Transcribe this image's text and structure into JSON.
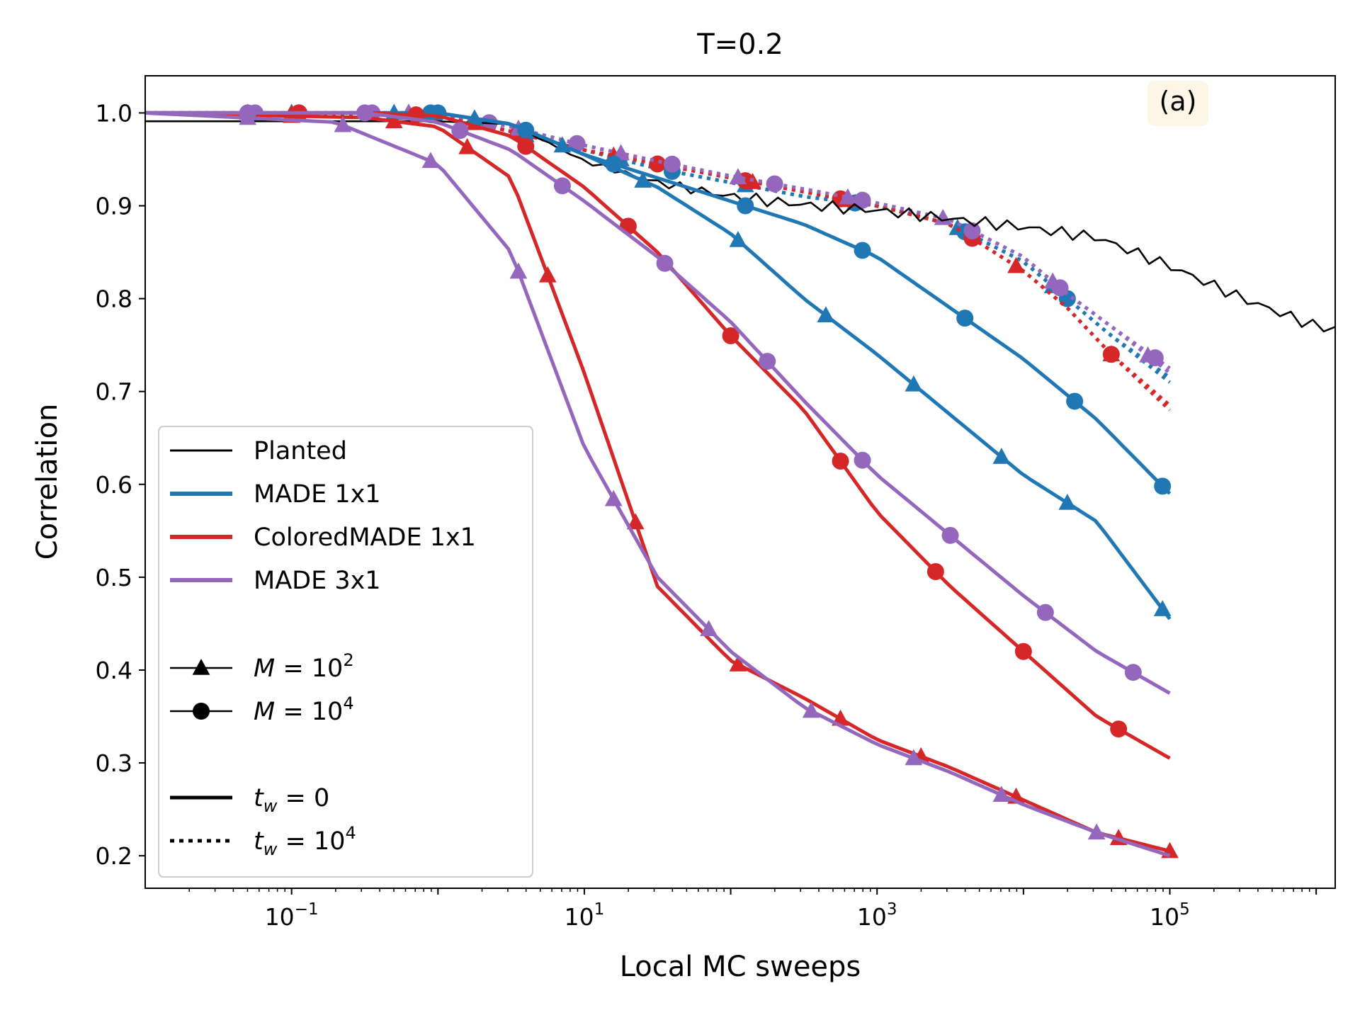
{
  "chart_data": {
    "type": "line",
    "title": "T=0.2",
    "panel_label": "(a)",
    "xlabel": "Local MC sweeps",
    "ylabel": "Correlation",
    "xscale": "log",
    "xlim_log10": [
      -2.0,
      6.13
    ],
    "ylim": [
      0.165,
      1.04
    ],
    "yticks": [
      {
        "value": 1.0,
        "label": "1.0"
      },
      {
        "value": 0.9,
        "label": "0.9"
      },
      {
        "value": 0.8,
        "label": "0.8"
      },
      {
        "value": 0.7,
        "label": "0.7"
      },
      {
        "value": 0.6,
        "label": "0.6"
      },
      {
        "value": 0.5,
        "label": "0.5"
      },
      {
        "value": 0.4,
        "label": "0.4"
      },
      {
        "value": 0.3,
        "label": "0.3"
      },
      {
        "value": 0.2,
        "label": "0.2"
      }
    ],
    "xticks": [
      {
        "exp": -1,
        "base": "10",
        "power": "−1"
      },
      {
        "exp": 1,
        "base": "10",
        "power": "1"
      },
      {
        "exp": 3,
        "base": "10",
        "power": "3"
      },
      {
        "exp": 5,
        "base": "10",
        "power": "5"
      }
    ],
    "colors": {
      "planted": "#000000",
      "made1x1": "#1f77b4",
      "colored": "#d62728",
      "made3x1": "#9467bd"
    },
    "legend": {
      "entries": [
        {
          "label": "Planted",
          "color": "#000000",
          "style": "solid-thin"
        },
        {
          "label": "MADE 1x1",
          "color": "#1f77b4",
          "style": "solid"
        },
        {
          "label": "ColoredMADE 1x1",
          "color": "#d62728",
          "style": "solid"
        },
        {
          "label": "MADE 3x1",
          "color": "#9467bd",
          "style": "solid"
        }
      ],
      "m_entries": [
        {
          "prefix": "M",
          "eq": " = 10",
          "power": "2",
          "marker": "triangle"
        },
        {
          "prefix": "M",
          "eq": " = 10",
          "power": "4",
          "marker": "circle"
        }
      ],
      "tw_entries": [
        {
          "prefix": "t",
          "sub": "w",
          "eq": " = 0",
          "power": "",
          "style": "solid"
        },
        {
          "prefix": "t",
          "sub": "w",
          "eq": " = 10",
          "power": "4",
          "style": "dotted"
        }
      ]
    },
    "series": [
      {
        "name": "Planted",
        "color": "#000000",
        "dash": "solid",
        "marker": "none",
        "width": 2.6,
        "jitter": 0.004,
        "points": [
          [
            -2.0,
            0.991
          ],
          [
            0.0,
            0.991
          ],
          [
            0.5,
            0.988
          ],
          [
            1.0,
            0.948
          ],
          [
            1.5,
            0.925
          ],
          [
            2.0,
            0.91
          ],
          [
            2.5,
            0.901
          ],
          [
            3.0,
            0.895
          ],
          [
            3.5,
            0.886
          ],
          [
            4.0,
            0.877
          ],
          [
            4.5,
            0.866
          ],
          [
            5.0,
            0.835
          ],
          [
            5.5,
            0.8
          ],
          [
            6.0,
            0.77
          ],
          [
            6.2,
            0.766
          ]
        ]
      },
      {
        "name": "MADE 1x1",
        "color": "#1f77b4",
        "dash": "solid",
        "marker": "triangle",
        "points": [
          [
            -2.0,
            1.0
          ],
          [
            0.0,
            1.0
          ],
          [
            0.5,
            0.988
          ],
          [
            1.0,
            0.955
          ],
          [
            1.5,
            0.92
          ],
          [
            2.0,
            0.87
          ],
          [
            2.5,
            0.8
          ],
          [
            3.0,
            0.74
          ],
          [
            3.5,
            0.675
          ],
          [
            4.0,
            0.61
          ],
          [
            4.5,
            0.56
          ],
          [
            5.0,
            0.455
          ]
        ],
        "marks": [
          -0.3,
          0.25,
          0.85,
          1.4,
          2.05,
          2.65,
          3.25,
          3.85,
          4.3,
          4.95
        ]
      },
      {
        "name": "MADE 1x1",
        "color": "#1f77b4",
        "dash": "solid",
        "marker": "circle",
        "points": [
          [
            -2.0,
            1.0
          ],
          [
            0.0,
            1.0
          ],
          [
            0.5,
            0.988
          ],
          [
            1.0,
            0.955
          ],
          [
            1.5,
            0.93
          ],
          [
            2.0,
            0.905
          ],
          [
            2.5,
            0.88
          ],
          [
            3.0,
            0.845
          ],
          [
            3.5,
            0.79
          ],
          [
            4.0,
            0.735
          ],
          [
            4.5,
            0.67
          ],
          [
            5.0,
            0.59
          ]
        ],
        "marks": [
          -0.95,
          -0.05,
          0.6,
          1.2,
          2.1,
          2.9,
          3.6,
          4.35,
          4.95
        ]
      },
      {
        "name": "ColoredMADE 1x1",
        "color": "#d62728",
        "dash": "solid",
        "marker": "triangle",
        "points": [
          [
            -2.0,
            1.0
          ],
          [
            -0.5,
            0.995
          ],
          [
            0.0,
            0.985
          ],
          [
            0.5,
            0.93
          ],
          [
            1.0,
            0.72
          ],
          [
            1.5,
            0.49
          ],
          [
            2.0,
            0.41
          ],
          [
            2.5,
            0.37
          ],
          [
            3.0,
            0.325
          ],
          [
            3.5,
            0.295
          ],
          [
            4.0,
            0.26
          ],
          [
            4.5,
            0.225
          ],
          [
            5.0,
            0.205
          ]
        ],
        "marks": [
          -1.0,
          -0.3,
          0.2,
          0.75,
          1.35,
          2.05,
          2.75,
          3.3,
          3.95,
          4.65,
          5.0
        ]
      },
      {
        "name": "ColoredMADE 1x1",
        "color": "#d62728",
        "dash": "solid",
        "marker": "circle",
        "points": [
          [
            -2.0,
            1.0
          ],
          [
            -0.5,
            1.0
          ],
          [
            0.0,
            0.997
          ],
          [
            0.5,
            0.975
          ],
          [
            1.0,
            0.92
          ],
          [
            1.5,
            0.85
          ],
          [
            2.0,
            0.76
          ],
          [
            2.5,
            0.68
          ],
          [
            3.0,
            0.57
          ],
          [
            3.5,
            0.49
          ],
          [
            4.0,
            0.42
          ],
          [
            4.5,
            0.35
          ],
          [
            5.0,
            0.305
          ]
        ],
        "marks": [
          -0.95,
          -0.15,
          0.6,
          1.3,
          2.0,
          2.75,
          3.4,
          4.0,
          4.65
        ]
      },
      {
        "name": "MADE 3x1",
        "color": "#9467bd",
        "dash": "solid",
        "marker": "triangle",
        "points": [
          [
            -2.0,
            1.0
          ],
          [
            -0.7,
            0.99
          ],
          [
            0.0,
            0.945
          ],
          [
            0.5,
            0.85
          ],
          [
            1.0,
            0.64
          ],
          [
            1.5,
            0.5
          ],
          [
            2.0,
            0.42
          ],
          [
            2.5,
            0.36
          ],
          [
            3.0,
            0.32
          ],
          [
            3.5,
            0.29
          ],
          [
            4.0,
            0.255
          ],
          [
            4.5,
            0.225
          ],
          [
            5.0,
            0.2
          ]
        ],
        "marks": [
          -1.3,
          -0.65,
          -0.05,
          0.55,
          1.2,
          1.85,
          2.55,
          3.25,
          3.85,
          4.5
        ]
      },
      {
        "name": "MADE 3x1",
        "color": "#9467bd",
        "dash": "solid",
        "marker": "circle",
        "points": [
          [
            -2.0,
            1.0
          ],
          [
            -0.5,
            1.0
          ],
          [
            0.0,
            0.99
          ],
          [
            0.5,
            0.96
          ],
          [
            1.0,
            0.905
          ],
          [
            1.5,
            0.845
          ],
          [
            2.0,
            0.775
          ],
          [
            2.5,
            0.69
          ],
          [
            3.0,
            0.61
          ],
          [
            3.5,
            0.545
          ],
          [
            4.0,
            0.48
          ],
          [
            4.5,
            0.42
          ],
          [
            5.0,
            0.375
          ]
        ],
        "marks": [
          -1.3,
          -0.5,
          0.15,
          0.85,
          1.55,
          2.25,
          2.9,
          3.5,
          4.15,
          4.75
        ]
      },
      {
        "name": "MADE 1x1 (t_w=10^4)",
        "color": "#1f77b4",
        "dash": "dotted",
        "marker": "triangle",
        "points": [
          [
            -2.0,
            1.0
          ],
          [
            0.0,
            1.0
          ],
          [
            0.5,
            0.98
          ],
          [
            1.0,
            0.96
          ],
          [
            1.5,
            0.94
          ],
          [
            2.0,
            0.925
          ],
          [
            2.5,
            0.91
          ],
          [
            3.0,
            0.9
          ],
          [
            3.5,
            0.88
          ],
          [
            4.0,
            0.84
          ],
          [
            4.3,
            0.8
          ],
          [
            4.6,
            0.76
          ],
          [
            5.0,
            0.71
          ]
        ],
        "marks": [
          -1.0,
          -0.2,
          0.6,
          1.25,
          2.1,
          2.85,
          3.55,
          4.2
        ]
      },
      {
        "name": "MADE 1x1 (t_w=10^4)",
        "color": "#1f77b4",
        "dash": "dotted",
        "marker": "circle",
        "points": [
          [
            -2.0,
            1.0
          ],
          [
            0.0,
            1.0
          ],
          [
            0.5,
            0.98
          ],
          [
            1.0,
            0.96
          ],
          [
            1.5,
            0.94
          ],
          [
            2.0,
            0.925
          ],
          [
            2.5,
            0.91
          ],
          [
            3.0,
            0.9
          ],
          [
            3.5,
            0.88
          ],
          [
            4.0,
            0.84
          ],
          [
            4.3,
            0.8
          ],
          [
            4.6,
            0.76
          ],
          [
            5.0,
            0.715
          ]
        ],
        "marks": [
          -0.95,
          0.0,
          0.6,
          1.6,
          2.85,
          3.6,
          4.3
        ]
      },
      {
        "name": "ColoredMADE 1x1 (t_w=10^4)",
        "color": "#d62728",
        "dash": "dotted",
        "marker": "triangle",
        "points": [
          [
            -2.0,
            1.0
          ],
          [
            0.0,
            0.998
          ],
          [
            0.5,
            0.98
          ],
          [
            1.0,
            0.96
          ],
          [
            1.5,
            0.945
          ],
          [
            2.0,
            0.93
          ],
          [
            2.5,
            0.915
          ],
          [
            3.0,
            0.9
          ],
          [
            3.5,
            0.88
          ],
          [
            4.0,
            0.83
          ],
          [
            4.3,
            0.79
          ],
          [
            4.6,
            0.74
          ],
          [
            5.0,
            0.68
          ]
        ],
        "marks": [
          -1.0,
          0.25,
          1.2,
          2.15,
          2.8,
          3.95,
          4.6
        ]
      },
      {
        "name": "ColoredMADE 1x1 (t_w=10^4)",
        "color": "#d62728",
        "dash": "dotted",
        "marker": "circle",
        "points": [
          [
            -2.0,
            1.0
          ],
          [
            0.0,
            0.998
          ],
          [
            0.5,
            0.98
          ],
          [
            1.0,
            0.96
          ],
          [
            1.5,
            0.945
          ],
          [
            2.0,
            0.93
          ],
          [
            2.5,
            0.915
          ],
          [
            3.0,
            0.9
          ],
          [
            3.5,
            0.88
          ],
          [
            4.0,
            0.83
          ],
          [
            4.3,
            0.79
          ],
          [
            4.6,
            0.74
          ],
          [
            5.0,
            0.685
          ]
        ],
        "marks": [
          -0.95,
          -0.05,
          0.55,
          1.5,
          2.1,
          2.75,
          3.65,
          4.6
        ]
      },
      {
        "name": "MADE 3x1 (t_w=10^4)",
        "color": "#9467bd",
        "dash": "dotted",
        "marker": "triangle",
        "points": [
          [
            -2.0,
            1.0
          ],
          [
            0.0,
            1.0
          ],
          [
            0.5,
            0.985
          ],
          [
            1.0,
            0.965
          ],
          [
            1.5,
            0.948
          ],
          [
            2.0,
            0.932
          ],
          [
            2.5,
            0.918
          ],
          [
            3.0,
            0.903
          ],
          [
            3.5,
            0.885
          ],
          [
            4.0,
            0.845
          ],
          [
            4.3,
            0.805
          ],
          [
            4.6,
            0.77
          ],
          [
            5.0,
            0.72
          ]
        ],
        "marks": [
          -1.3,
          -0.2,
          0.55,
          1.25,
          2.05,
          2.8,
          3.45,
          4.2,
          4.85
        ]
      },
      {
        "name": "MADE 3x1 (t_w=10^4)",
        "color": "#9467bd",
        "dash": "dotted",
        "marker": "circle",
        "points": [
          [
            -2.0,
            1.0
          ],
          [
            0.0,
            1.0
          ],
          [
            0.5,
            0.985
          ],
          [
            1.0,
            0.965
          ],
          [
            1.5,
            0.948
          ],
          [
            2.0,
            0.932
          ],
          [
            2.5,
            0.918
          ],
          [
            3.0,
            0.903
          ],
          [
            3.5,
            0.885
          ],
          [
            4.0,
            0.845
          ],
          [
            4.3,
            0.805
          ],
          [
            4.6,
            0.77
          ],
          [
            5.0,
            0.725
          ]
        ],
        "marks": [
          -1.25,
          -0.45,
          0.35,
          0.95,
          1.6,
          2.3,
          2.9,
          3.65,
          4.25,
          4.9
        ]
      }
    ]
  }
}
